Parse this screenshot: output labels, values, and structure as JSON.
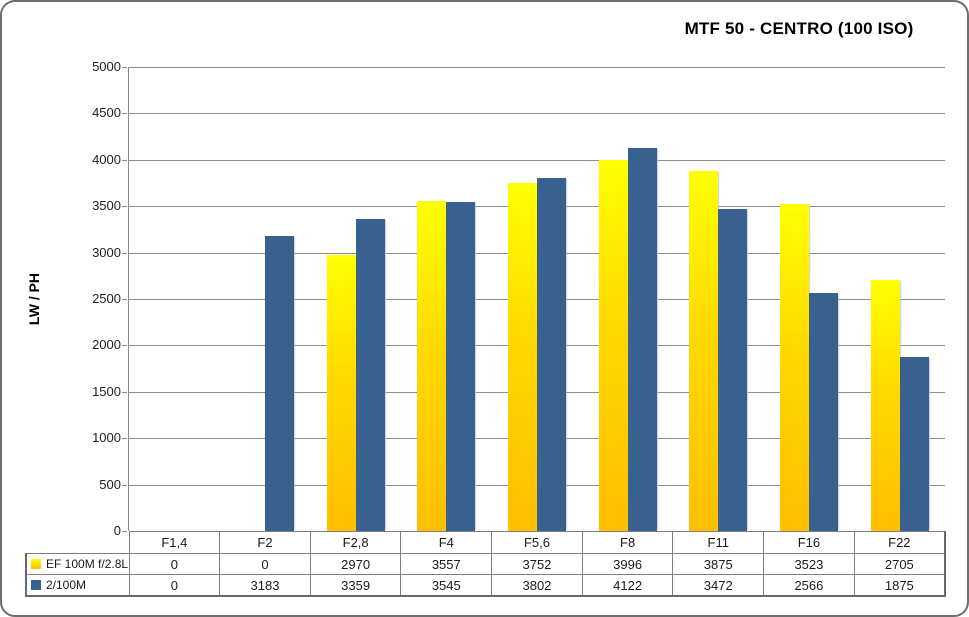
{
  "title": "MTF 50 - CENTRO (100 ISO)",
  "colors": {
    "series1_top": "#FFFF02",
    "series1_mid": "#FFD800",
    "series1_bottom": "#FEBF00",
    "series2": "#38618F",
    "gridline": "#8C8C8C",
    "axis_text": "#1f1f1f",
    "table_border": "#7F7F7F"
  },
  "chart_data": {
    "type": "bar",
    "title": "MTF 50 - CENTRO (100 ISO)",
    "xlabel": "",
    "ylabel": "LW / PH",
    "categories": [
      "F1,4",
      "F2",
      "F2,8",
      "F4",
      "F5,6",
      "F8",
      "F11",
      "F16",
      "F22"
    ],
    "series": [
      {
        "name": "EF 100M f/2.8L",
        "values": [
          0,
          0,
          2970,
          3557,
          3752,
          3996,
          3875,
          3523,
          2705
        ]
      },
      {
        "name": "2/100M",
        "values": [
          0,
          3183,
          3359,
          3545,
          3802,
          4122,
          3472,
          2566,
          1875
        ]
      }
    ],
    "ylim": [
      0,
      5000
    ],
    "ytick_step": 500,
    "grid": true,
    "legend_position": "table-left"
  }
}
